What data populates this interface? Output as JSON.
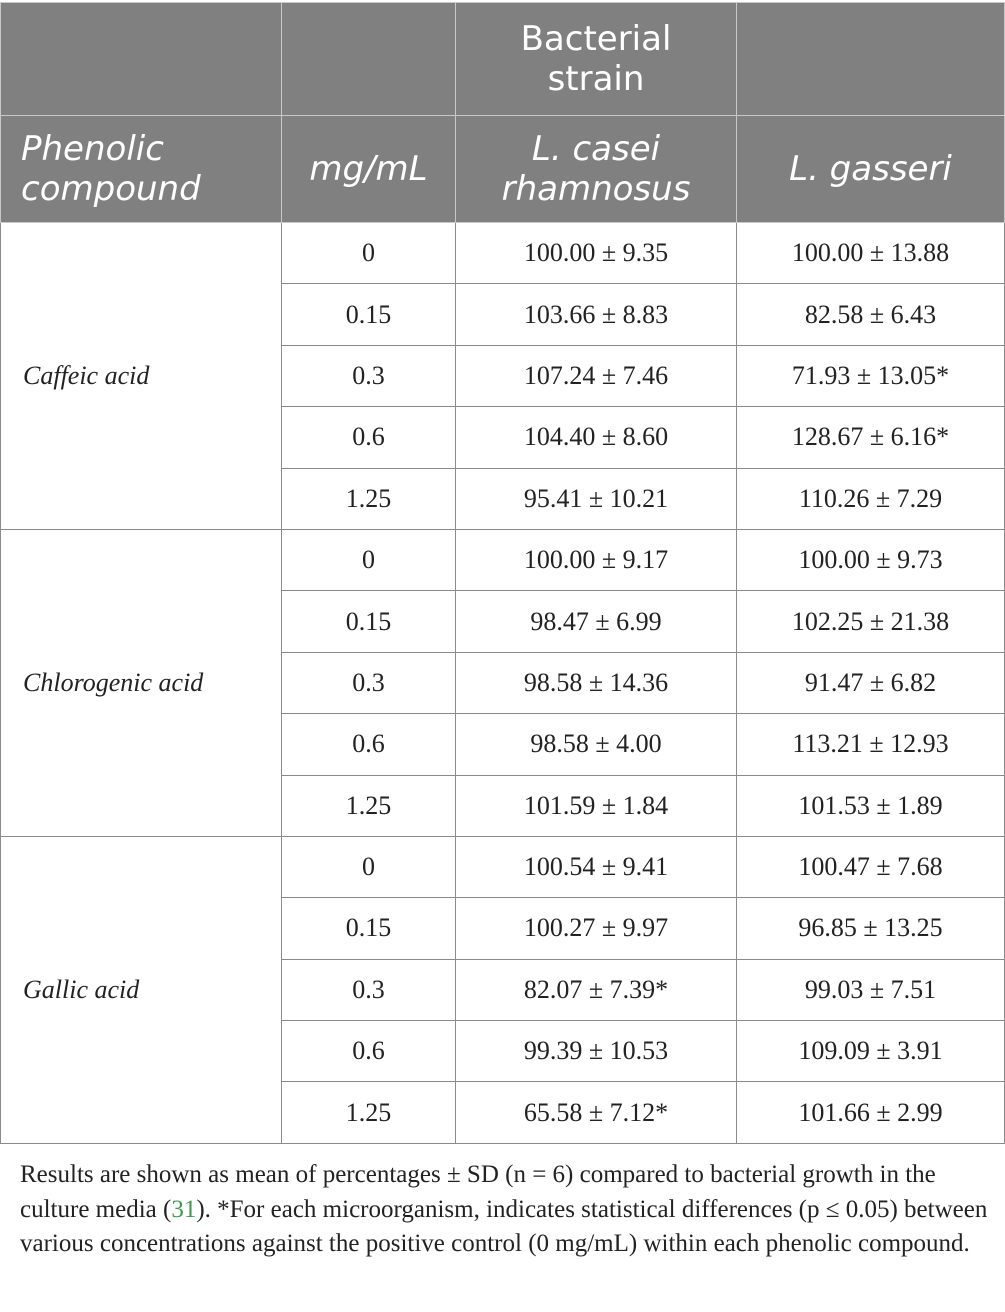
{
  "table": {
    "header_row1": {
      "group_label": "Bacterial strain"
    },
    "header_row2": {
      "compound_label": "Phenolic compound",
      "conc_label": "mg/mL",
      "strain1_label": "L. casei rhamnosus",
      "strain2_label": "L. gasseri"
    },
    "groups": [
      {
        "compound": "Caffeic acid",
        "rows": [
          {
            "conc": "0",
            "strain1": "100.00 ± 9.35",
            "strain2": "100.00 ± 13.88"
          },
          {
            "conc": "0.15",
            "strain1": "103.66 ± 8.83",
            "strain2": "82.58 ± 6.43"
          },
          {
            "conc": "0.3",
            "strain1": "107.24 ± 7.46",
            "strain2": "71.93 ± 13.05*"
          },
          {
            "conc": "0.6",
            "strain1": "104.40 ± 8.60",
            "strain2": "128.67 ± 6.16*"
          },
          {
            "conc": "1.25",
            "strain1": "95.41 ± 10.21",
            "strain2": "110.26 ± 7.29"
          }
        ]
      },
      {
        "compound": "Chlorogenic acid",
        "rows": [
          {
            "conc": "0",
            "strain1": "100.00 ± 9.17",
            "strain2": "100.00 ± 9.73"
          },
          {
            "conc": "0.15",
            "strain1": "98.47 ± 6.99",
            "strain2": "102.25 ± 21.38"
          },
          {
            "conc": "0.3",
            "strain1": "98.58 ± 14.36",
            "strain2": "91.47 ± 6.82"
          },
          {
            "conc": "0.6",
            "strain1": "98.58 ± 4.00",
            "strain2": "113.21 ± 12.93"
          },
          {
            "conc": "1.25",
            "strain1": "101.59 ± 1.84",
            "strain2": "101.53 ± 1.89"
          }
        ]
      },
      {
        "compound": "Gallic acid",
        "rows": [
          {
            "conc": "0",
            "strain1": "100.54 ± 9.41",
            "strain2": "100.47 ± 7.68"
          },
          {
            "conc": "0.15",
            "strain1": "100.27 ± 9.97",
            "strain2": "96.85 ± 13.25"
          },
          {
            "conc": "0.3",
            "strain1": "82.07 ± 7.39*",
            "strain2": "99.03 ± 7.51"
          },
          {
            "conc": "0.6",
            "strain1": "99.39 ± 10.53",
            "strain2": "109.09 ± 3.91"
          },
          {
            "conc": "1.25",
            "strain1": "65.58 ± 7.12*",
            "strain2": "101.66 ± 2.99"
          }
        ]
      }
    ]
  },
  "footnote": {
    "before_ref": "Results are shown as mean of percentages ± SD (n = 6) compared to bacterial growth in the culture media (",
    "ref": "31",
    "after_ref": "). *For each microorganism, indicates statistical differences (p ≤ 0.05) between various concentrations against the positive control (0 mg/mL) within each phenolic compound."
  }
}
